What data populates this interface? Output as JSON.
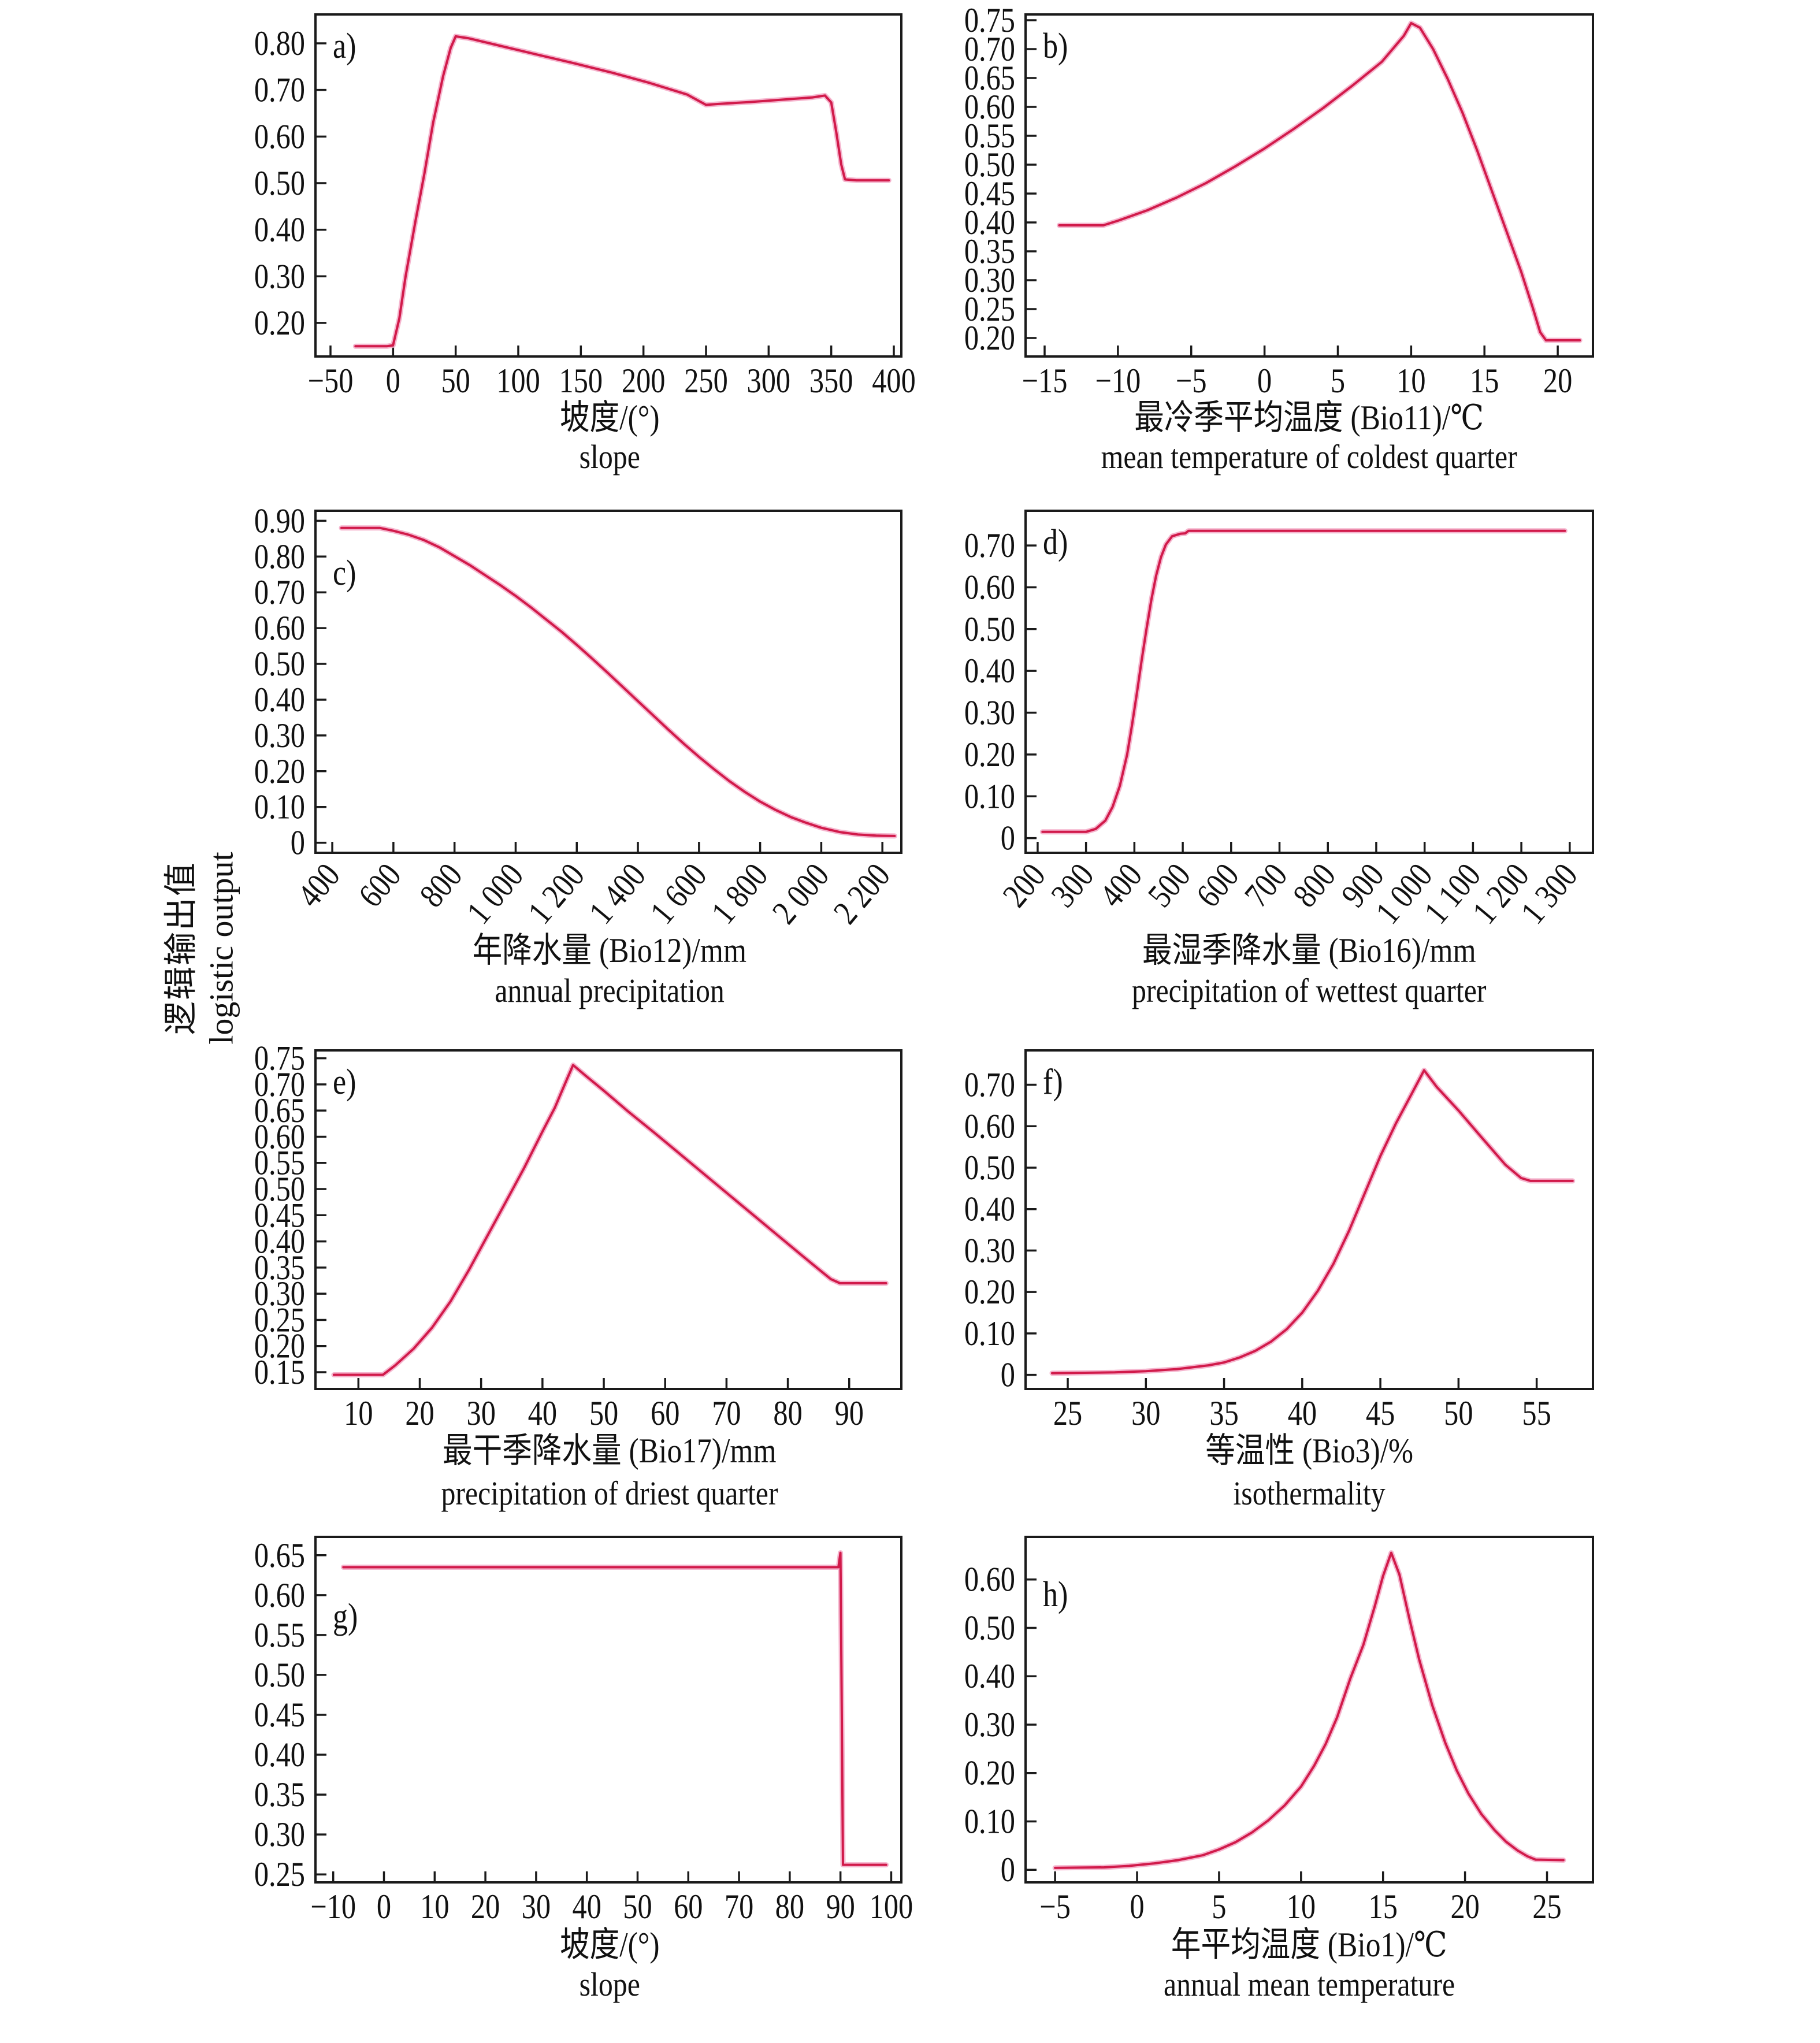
{
  "figure": {
    "ylabel_zh": "逻辑输出值",
    "ylabel_en": "logistic output",
    "line_color": "#d11a4a",
    "halo_color": "#f3a8c5",
    "frame_color": "#1a1a1a",
    "background": "#ffffff"
  },
  "chart_data": [
    {
      "type": "line",
      "letter": "a)",
      "xlabel_zh": "坡度/(°)",
      "xlabel_en": "slope",
      "ylabel": "logistic output",
      "xlim": [
        -62,
        406
      ],
      "ylim": [
        0.128,
        0.862
      ],
      "rotate_x_ticks": false,
      "x_tick_vals": [
        -50,
        0,
        50,
        100,
        150,
        200,
        250,
        300,
        350,
        400
      ],
      "x_tick_labels": [
        "−50",
        "0",
        "50",
        "100",
        "150",
        "200",
        "250",
        "300",
        "350",
        "400"
      ],
      "y_tick_vals": [
        0.2,
        0.3,
        0.4,
        0.5,
        0.6,
        0.7,
        0.8
      ],
      "y_tick_labels": [
        "0.20",
        "0.30",
        "0.40",
        "0.50",
        "0.60",
        "0.70",
        "0.80"
      ],
      "x": [
        -30,
        -5,
        0,
        5,
        10,
        18,
        25,
        32,
        40,
        46,
        50,
        60,
        85,
        115,
        145,
        175,
        205,
        235,
        250,
        260,
        285,
        310,
        335,
        345,
        350,
        354,
        358,
        361,
        370,
        396
      ],
      "y": [
        0.15,
        0.15,
        0.152,
        0.21,
        0.3,
        0.42,
        0.52,
        0.63,
        0.73,
        0.79,
        0.815,
        0.811,
        0.795,
        0.776,
        0.757,
        0.737,
        0.715,
        0.69,
        0.668,
        0.67,
        0.674,
        0.679,
        0.684,
        0.688,
        0.673,
        0.61,
        0.54,
        0.508,
        0.506,
        0.506
      ]
    },
    {
      "type": "line",
      "letter": "b)",
      "xlabel_zh": "最冷季平均温度 (Bio11)/℃",
      "xlabel_en": "mean temperature of coldest quarter",
      "ylabel": "logistic output",
      "xlim": [
        -16.3,
        22.4
      ],
      "ylim": [
        0.168,
        0.76
      ],
      "rotate_x_ticks": false,
      "x_tick_vals": [
        -15,
        -10,
        -5,
        0,
        5,
        10,
        15,
        20
      ],
      "x_tick_labels": [
        "−15",
        "−10",
        "−5",
        "0",
        "5",
        "10",
        "15",
        "20"
      ],
      "y_tick_vals": [
        0.2,
        0.25,
        0.3,
        0.35,
        0.4,
        0.45,
        0.5,
        0.55,
        0.6,
        0.65,
        0.7,
        0.75
      ],
      "y_tick_labels": [
        "0.20",
        "0.25",
        "0.30",
        "0.35",
        "0.40",
        "0.45",
        "0.50",
        "0.55",
        "0.60",
        "0.65",
        "0.70",
        "0.75"
      ],
      "x": [
        -14,
        -11,
        -10,
        -8,
        -6,
        -4,
        -2,
        0,
        2,
        4,
        6,
        8,
        9.5,
        10,
        10.6,
        11.5,
        12.5,
        13.5,
        14.5,
        15.5,
        16.5,
        17.5,
        18.3,
        18.8,
        19.2,
        21.5
      ],
      "y": [
        0.395,
        0.395,
        0.403,
        0.421,
        0.443,
        0.468,
        0.497,
        0.528,
        0.562,
        0.598,
        0.637,
        0.678,
        0.723,
        0.745,
        0.737,
        0.7,
        0.648,
        0.59,
        0.525,
        0.455,
        0.385,
        0.315,
        0.252,
        0.21,
        0.196,
        0.196
      ]
    },
    {
      "type": "line",
      "letter": "c)",
      "xlabel_zh": "年降水量 (Bio12)/mm",
      "xlabel_en": "annual precipitation",
      "ylabel": "logistic output",
      "xlim": [
        345,
        2262
      ],
      "ylim": [
        -0.028,
        0.928
      ],
      "rotate_x_ticks": true,
      "x_tick_vals": [
        400,
        600,
        800,
        1000,
        1200,
        1400,
        1600,
        1800,
        2000,
        2200
      ],
      "x_tick_labels": [
        "400",
        "600",
        "800",
        "1 000",
        "1 200",
        "1 400",
        "1 600",
        "1 800",
        "2 000",
        "2 200"
      ],
      "y_tick_vals": [
        0,
        0.1,
        0.2,
        0.3,
        0.4,
        0.5,
        0.6,
        0.7,
        0.8,
        0.9
      ],
      "y_tick_labels": [
        "0",
        "0.10",
        "0.20",
        "0.30",
        "0.40",
        "0.50",
        "0.60",
        "0.70",
        "0.80",
        "0.90"
      ],
      "x": [
        430,
        555,
        600,
        650,
        700,
        750,
        800,
        850,
        900,
        950,
        1000,
        1050,
        1100,
        1150,
        1200,
        1250,
        1300,
        1350,
        1400,
        1450,
        1500,
        1550,
        1600,
        1650,
        1700,
        1750,
        1800,
        1850,
        1900,
        1950,
        2000,
        2060,
        2120,
        2180,
        2240
      ],
      "y": [
        0.88,
        0.88,
        0.872,
        0.861,
        0.846,
        0.826,
        0.801,
        0.776,
        0.748,
        0.72,
        0.69,
        0.658,
        0.624,
        0.59,
        0.553,
        0.515,
        0.476,
        0.436,
        0.396,
        0.356,
        0.316,
        0.277,
        0.24,
        0.205,
        0.172,
        0.142,
        0.115,
        0.092,
        0.072,
        0.056,
        0.042,
        0.03,
        0.023,
        0.02,
        0.019
      ]
    },
    {
      "type": "line",
      "letter": "d)",
      "xlabel_zh": "最湿季降水量 (Bio16)/mm",
      "xlabel_en": "precipitation of wettest quarter",
      "ylabel": "logistic output",
      "xlim": [
        175,
        1348
      ],
      "ylim": [
        -0.035,
        0.783
      ],
      "rotate_x_ticks": true,
      "x_tick_vals": [
        200,
        300,
        400,
        500,
        600,
        700,
        800,
        900,
        1000,
        1100,
        1200,
        1300
      ],
      "x_tick_labels": [
        "200",
        "300",
        "400",
        "500",
        "600",
        "700",
        "800",
        "900",
        "1 000",
        "1 100",
        "1 200",
        "1 300"
      ],
      "y_tick_vals": [
        0,
        0.1,
        0.2,
        0.3,
        0.4,
        0.5,
        0.6,
        0.7
      ],
      "y_tick_labels": [
        "0",
        "0.10",
        "0.20",
        "0.30",
        "0.40",
        "0.50",
        "0.60",
        "0.70"
      ],
      "x": [
        210,
        300,
        320,
        340,
        355,
        370,
        385,
        395,
        405,
        415,
        425,
        435,
        445,
        455,
        465,
        478,
        495,
        505,
        512,
        560,
        700,
        900,
        1100,
        1290
      ],
      "y": [
        0.015,
        0.015,
        0.022,
        0.042,
        0.075,
        0.125,
        0.2,
        0.27,
        0.345,
        0.425,
        0.5,
        0.57,
        0.628,
        0.672,
        0.702,
        0.722,
        0.728,
        0.729,
        0.735,
        0.735,
        0.735,
        0.735,
        0.735,
        0.735
      ]
    },
    {
      "type": "line",
      "letter": "e)",
      "xlabel_zh": "最干季降水量 (Bio17)/mm",
      "xlabel_en": "precipitation of driest quarter",
      "ylabel": "logistic output",
      "xlim": [
        3,
        98.5
      ],
      "ylim": [
        0.118,
        0.765
      ],
      "rotate_x_ticks": false,
      "x_tick_vals": [
        10,
        20,
        30,
        40,
        50,
        60,
        70,
        80,
        90
      ],
      "x_tick_labels": [
        "10",
        "20",
        "30",
        "40",
        "50",
        "60",
        "70",
        "80",
        "90"
      ],
      "y_tick_vals": [
        0.15,
        0.2,
        0.25,
        0.3,
        0.35,
        0.4,
        0.45,
        0.5,
        0.55,
        0.6,
        0.65,
        0.7,
        0.75
      ],
      "y_tick_labels": [
        "0.15",
        "0.20",
        "0.25",
        "0.30",
        "0.35",
        "0.40",
        "0.45",
        "0.50",
        "0.55",
        "0.60",
        "0.65",
        "0.70",
        "0.75"
      ],
      "x": [
        6,
        14,
        16,
        19,
        22,
        25,
        28,
        31,
        34,
        37,
        40,
        42,
        44,
        45,
        47,
        50,
        54,
        58,
        62,
        66,
        70,
        74,
        78,
        82,
        85,
        87,
        88.5,
        96
      ],
      "y": [
        0.145,
        0.145,
        0.163,
        0.195,
        0.235,
        0.285,
        0.345,
        0.41,
        0.475,
        0.54,
        0.61,
        0.655,
        0.71,
        0.737,
        0.717,
        0.688,
        0.648,
        0.61,
        0.571,
        0.532,
        0.493,
        0.454,
        0.415,
        0.376,
        0.347,
        0.328,
        0.32,
        0.32
      ]
    },
    {
      "type": "line",
      "letter": "f)",
      "xlabel_zh": "等温性 (Bio3)/%",
      "xlabel_en": "isothermality",
      "ylabel": "logistic output",
      "xlim": [
        22.3,
        58.6
      ],
      "ylim": [
        -0.034,
        0.783
      ],
      "rotate_x_ticks": false,
      "x_tick_vals": [
        25,
        30,
        35,
        40,
        45,
        50,
        55
      ],
      "x_tick_labels": [
        "25",
        "30",
        "35",
        "40",
        "45",
        "50",
        "55"
      ],
      "y_tick_vals": [
        0,
        0.1,
        0.2,
        0.3,
        0.4,
        0.5,
        0.6,
        0.7
      ],
      "y_tick_labels": [
        "0",
        "0.10",
        "0.20",
        "0.30",
        "0.40",
        "0.50",
        "0.60",
        "0.70"
      ],
      "x": [
        24,
        28,
        30,
        32,
        34,
        35,
        36,
        37,
        38,
        39,
        40,
        41,
        42,
        43,
        44,
        45,
        46,
        47,
        47.8,
        48.6,
        50,
        51.5,
        53,
        54,
        54.6,
        57.3
      ],
      "y": [
        0.004,
        0.006,
        0.009,
        0.014,
        0.023,
        0.03,
        0.042,
        0.058,
        0.08,
        0.11,
        0.15,
        0.203,
        0.268,
        0.348,
        0.438,
        0.528,
        0.607,
        0.678,
        0.735,
        0.695,
        0.638,
        0.572,
        0.507,
        0.475,
        0.468,
        0.468
      ]
    },
    {
      "type": "line",
      "letter": "g)",
      "xlabel_zh": "坡度/(°)",
      "xlabel_en": "slope",
      "ylabel": "logistic output",
      "xlim": [
        -13.5,
        102
      ],
      "ylim": [
        0.24,
        0.673
      ],
      "rotate_x_ticks": false,
      "x_tick_vals": [
        -10,
        0,
        10,
        20,
        30,
        40,
        50,
        60,
        70,
        80,
        90,
        100
      ],
      "x_tick_labels": [
        "−10",
        "0",
        "10",
        "20",
        "30",
        "40",
        "50",
        "60",
        "70",
        "80",
        "90",
        "100"
      ],
      "y_tick_vals": [
        0.25,
        0.3,
        0.35,
        0.4,
        0.45,
        0.5,
        0.55,
        0.6,
        0.65
      ],
      "y_tick_labels": [
        "0.25",
        "0.30",
        "0.35",
        "0.40",
        "0.45",
        "0.50",
        "0.55",
        "0.60",
        "0.65"
      ],
      "x": [
        -8,
        40,
        89.6,
        90,
        90.2,
        90.5,
        99
      ],
      "y": [
        0.635,
        0.635,
        0.635,
        0.653,
        0.5,
        0.262,
        0.262
      ]
    },
    {
      "type": "line",
      "letter": "h)",
      "xlabel_zh": "年平均温度 (Bio1)/℃",
      "xlabel_en": "annual mean temperature",
      "ylabel": "logistic output",
      "xlim": [
        -6.8,
        27.8
      ],
      "ylim": [
        -0.026,
        0.688
      ],
      "rotate_x_ticks": false,
      "x_tick_vals": [
        -5,
        0,
        5,
        10,
        15,
        20,
        25
      ],
      "x_tick_labels": [
        "−5",
        "0",
        "5",
        "10",
        "15",
        "20",
        "25"
      ],
      "y_tick_vals": [
        0,
        0.1,
        0.2,
        0.3,
        0.4,
        0.5,
        0.6
      ],
      "y_tick_labels": [
        "0",
        "0.10",
        "0.20",
        "0.30",
        "0.40",
        "0.50",
        "0.60"
      ],
      "x": [
        -5,
        -2,
        -0.5,
        1,
        2.5,
        4,
        5,
        6,
        7,
        8,
        9,
        10,
        10.8,
        11.5,
        12.2,
        13,
        13.8,
        14.5,
        15,
        15.5,
        16,
        16.6,
        17.2,
        18,
        18.8,
        19.5,
        20.2,
        21,
        21.8,
        22.5,
        23.2,
        23.8,
        24.3,
        26
      ],
      "y": [
        0.004,
        0.005,
        0.008,
        0.013,
        0.02,
        0.03,
        0.042,
        0.057,
        0.077,
        0.102,
        0.133,
        0.172,
        0.215,
        0.26,
        0.315,
        0.395,
        0.465,
        0.545,
        0.607,
        0.655,
        0.61,
        0.52,
        0.435,
        0.34,
        0.262,
        0.205,
        0.158,
        0.115,
        0.082,
        0.058,
        0.04,
        0.028,
        0.021,
        0.02
      ]
    }
  ]
}
